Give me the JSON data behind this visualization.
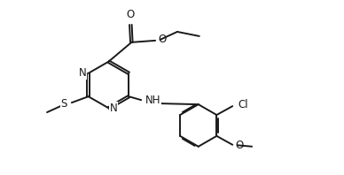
{
  "background_color": "#ffffff",
  "line_color": "#1a1a1a",
  "line_width": 1.4,
  "font_size": 8.5,
  "figsize": [
    3.88,
    1.98
  ],
  "dpi": 100,
  "xlim": [
    0,
    3.88
  ],
  "ylim": [
    0,
    1.98
  ]
}
